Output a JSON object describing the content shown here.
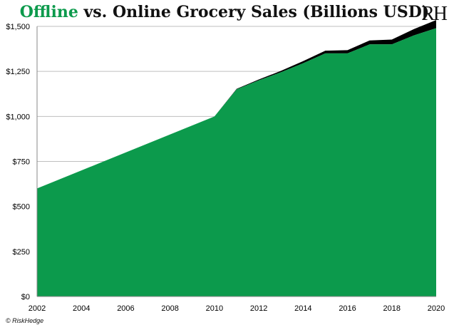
{
  "title": {
    "accent": "Offline",
    "rest": " vs. Online Grocery Sales (Billions USD)"
  },
  "logo": "RH",
  "copyright": "© RiskHedge",
  "colors": {
    "offline": "#0c9a4c",
    "online": "#000000",
    "grid": "#bfbfbf"
  },
  "chart_data": {
    "type": "area",
    "title": "Offline vs. Online Grocery Sales (Billions USD)",
    "x": [
      2002,
      2003,
      2004,
      2005,
      2006,
      2007,
      2008,
      2009,
      2010,
      2011,
      2012,
      2013,
      2014,
      2015,
      2016,
      2017,
      2018,
      2019,
      2020
    ],
    "series": [
      {
        "name": "Offline",
        "values": [
          600,
          650,
          700,
          750,
          800,
          850,
          900,
          950,
          1000,
          1150,
          1200,
          1245,
          1295,
          1350,
          1350,
          1400,
          1400,
          1450,
          1490
        ]
      },
      {
        "name": "Online",
        "values": [
          0,
          0,
          0,
          0,
          0,
          0,
          0,
          0,
          0,
          3,
          5,
          8,
          12,
          15,
          18,
          22,
          27,
          35,
          45
        ]
      }
    ],
    "stacked": true,
    "ylim": [
      0,
      1500
    ],
    "yticks": [
      "$0",
      "$250",
      "$500",
      "$750",
      "$1,000",
      "$1,250",
      "$1,500"
    ],
    "ytick_values": [
      0,
      250,
      500,
      750,
      1000,
      1250,
      1500
    ],
    "xticks": [
      "2002",
      "2004",
      "2006",
      "2008",
      "2010",
      "2012",
      "2014",
      "2016",
      "2018",
      "2020"
    ],
    "xtick_values": [
      2002,
      2004,
      2006,
      2008,
      2010,
      2012,
      2014,
      2016,
      2018,
      2020
    ],
    "grid": true
  }
}
